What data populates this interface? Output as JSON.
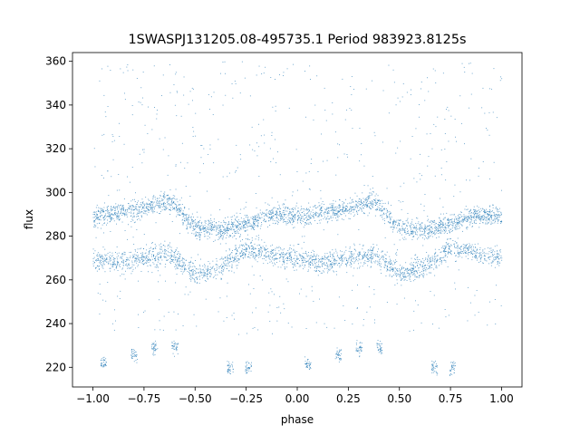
{
  "chart_data": {
    "type": "scatter",
    "title": "1SWASPJ131205.08-495735.1 Period 983923.8125s",
    "xlabel": "phase",
    "ylabel": "flux",
    "xlim": [
      -1.1,
      1.1
    ],
    "ylim": [
      211,
      364
    ],
    "xticks": [
      -1.0,
      -0.75,
      -0.5,
      -0.25,
      0.0,
      0.25,
      0.5,
      0.75,
      1.0
    ],
    "xtick_labels": [
      "−1.00",
      "−0.75",
      "−0.50",
      "−0.25",
      "0.00",
      "0.25",
      "0.50",
      "0.75",
      "1.00"
    ],
    "yticks": [
      220,
      240,
      260,
      280,
      300,
      320,
      340,
      360
    ],
    "ytick_labels": [
      "220",
      "240",
      "260",
      "280",
      "300",
      "320",
      "340",
      "360"
    ],
    "grid": false,
    "marker_color": "#1f77b4",
    "upper_band": {
      "x": [
        -1.0,
        -0.875,
        -0.75,
        -0.625,
        -0.5,
        -0.375,
        -0.25,
        -0.125,
        0.0,
        0.125,
        0.25,
        0.375,
        0.5,
        0.625,
        0.75,
        0.875,
        1.0
      ],
      "y": [
        289,
        291,
        293,
        296,
        284,
        283,
        286,
        290,
        289,
        291,
        293,
        296,
        284,
        283,
        286,
        290,
        289
      ]
    },
    "lower_band": {
      "x": [
        -1.0,
        -0.875,
        -0.75,
        -0.625,
        -0.5,
        -0.375,
        -0.25,
        -0.125,
        0.0,
        0.125,
        0.25,
        0.375,
        0.5,
        0.625,
        0.75,
        0.875,
        1.0
      ],
      "y": [
        270,
        268,
        270,
        272,
        263,
        266,
        275,
        272,
        270,
        268,
        270,
        272,
        263,
        266,
        275,
        272,
        270
      ]
    },
    "low_clusters": [
      {
        "x": -0.95,
        "y": 222
      },
      {
        "x": -0.8,
        "y": 226
      },
      {
        "x": -0.7,
        "y": 229
      },
      {
        "x": -0.6,
        "y": 229
      },
      {
        "x": -0.33,
        "y": 220
      },
      {
        "x": -0.24,
        "y": 220
      },
      {
        "x": 0.05,
        "y": 222
      },
      {
        "x": 0.2,
        "y": 226
      },
      {
        "x": 0.3,
        "y": 229
      },
      {
        "x": 0.4,
        "y": 229
      },
      {
        "x": 0.67,
        "y": 220
      },
      {
        "x": 0.76,
        "y": 220
      }
    ]
  }
}
